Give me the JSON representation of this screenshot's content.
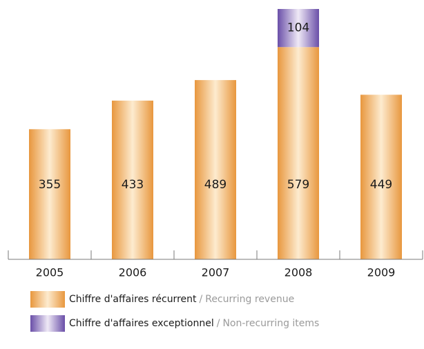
{
  "chart_data": {
    "type": "bar",
    "stacked": true,
    "categories": [
      "2005",
      "2006",
      "2007",
      "2008",
      "2009"
    ],
    "series": [
      {
        "name": "Chiffre d'affaires récurrent / Recurring revenue",
        "values": [
          355,
          433,
          489,
          579,
          449
        ],
        "color": "#e8973e"
      },
      {
        "name": "Chiffre d'affaires exceptionnel / Non-recurring items",
        "values": [
          0,
          0,
          0,
          104,
          0
        ],
        "color": "#6a4fa8"
      }
    ],
    "ylim": [
      0,
      683
    ],
    "grid": false,
    "legend_position": "bottom-left"
  },
  "legend": [
    {
      "fr": "Chiffre d'affaires récurrent",
      "sep": "/",
      "en": "Recurring revenue"
    },
    {
      "fr": "Chiffre d'affaires exceptionnel",
      "sep": "/",
      "en": "Non-recurring items"
    }
  ]
}
